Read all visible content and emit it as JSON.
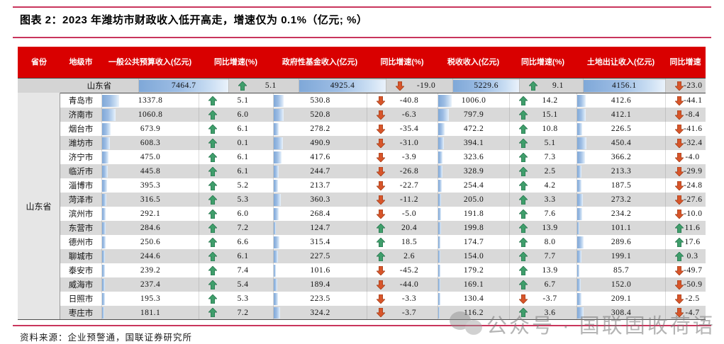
{
  "title": "图表 2：2023 年潍坊市财政收入低开高走，增速仅为 0.1%（亿元; %）",
  "source": "资料来源：企业预警通，国联证券研究所",
  "watermark": {
    "text": "公众号 · 国联固收荷语",
    "logo": "wechat-logo"
  },
  "colors": {
    "header_bg": "#d90000",
    "header_text": "#ffffff",
    "rule_line": "#c9355c",
    "bar_blue": "#7fa8d8",
    "up_arrow": "#3f9e6b",
    "down_arrow": "#d8552a",
    "stripe_gray": "#d9d9d9",
    "province_row_bg": "#d4d4d4",
    "merged_cell_bg": "#e6e6e6"
  },
  "chart_data": {
    "type": "table",
    "title": "2023 年潍坊市财政收入低开高走，增速仅为 0.1%（亿元; %）",
    "headers": [
      "省份",
      "地级市",
      "一般公共预算收入(亿元)",
      "同比增速(%)",
      "政府性基金收入(亿元)",
      "同比增速(%)",
      "税收收入(亿元)",
      "同比增速(%)",
      "土地出让收入(亿元)",
      "同比增速"
    ],
    "province_label": "山东省",
    "province": {
      "name": "山东省",
      "values": [
        7464.7,
        5.1,
        4925.4,
        -19.0,
        5229.6,
        9.1,
        4156.1,
        -23.0
      ]
    },
    "rows": [
      {
        "name": "青岛市",
        "values": [
          1337.8,
          5.1,
          530.8,
          -40.8,
          1006.0,
          14.2,
          412.6,
          -44.1
        ]
      },
      {
        "name": "济南市",
        "values": [
          1060.8,
          6.0,
          520.8,
          -6.3,
          797.9,
          15.1,
          412.1,
          -8.4
        ]
      },
      {
        "name": "烟台市",
        "values": [
          673.9,
          6.1,
          278.2,
          -35.4,
          472.2,
          10.8,
          226.5,
          -41.6
        ]
      },
      {
        "name": "潍坊市",
        "values": [
          608.3,
          0.1,
          490.9,
          -31.0,
          394.1,
          5.1,
          450.4,
          -32.4
        ]
      },
      {
        "name": "济宁市",
        "values": [
          475.0,
          6.1,
          417.6,
          -3.9,
          323.6,
          7.3,
          366.2,
          -4.0
        ]
      },
      {
        "name": "临沂市",
        "values": [
          445.8,
          6.1,
          244.7,
          -26.8,
          328.9,
          2.5,
          213.3,
          -29.9
        ]
      },
      {
        "name": "淄博市",
        "values": [
          395.3,
          5.2,
          213.7,
          -22.7,
          254.4,
          4.2,
          187.5,
          -24.8
        ]
      },
      {
        "name": "菏泽市",
        "values": [
          316.5,
          5.3,
          360.3,
          -11.2,
          205.0,
          3.3,
          273.2,
          -27.6
        ]
      },
      {
        "name": "滨州市",
        "values": [
          292.1,
          6.0,
          268.4,
          -5.0,
          191.8,
          7.6,
          234.2,
          -10.0
        ]
      },
      {
        "name": "东营市",
        "values": [
          284.6,
          7.2,
          124.7,
          20.4,
          199.8,
          13.9,
          101.1,
          11.6
        ]
      },
      {
        "name": "德州市",
        "values": [
          250.6,
          6.6,
          315.4,
          18.5,
          174.7,
          8.0,
          289.6,
          17.6
        ]
      },
      {
        "name": "聊城市",
        "values": [
          244.6,
          6.1,
          227.5,
          2.6,
          154.0,
          7.7,
          199.1,
          0.3
        ]
      },
      {
        "name": "泰安市",
        "values": [
          239.2,
          7.4,
          101.6,
          -45.2,
          179.2,
          13.9,
          85.7,
          -49.7
        ]
      },
      {
        "name": "威海市",
        "values": [
          237.4,
          5.4,
          189.4,
          -44.0,
          169.1,
          6.7,
          152.0,
          -50.9
        ]
      },
      {
        "name": "日照市",
        "values": [
          195.3,
          5.3,
          223.5,
          -3.3,
          130.4,
          -3.7,
          209.1,
          -2.5
        ]
      },
      {
        "name": "枣庄市",
        "values": [
          181.1,
          7.2,
          324.2,
          -3.7,
          116.2,
          3.6,
          308.4,
          -4.7
        ]
      }
    ],
    "notes": "数据条按各列最大值(山东省合计)比例显示；绿色上箭头=正增长，红色下箭头=负增长"
  }
}
